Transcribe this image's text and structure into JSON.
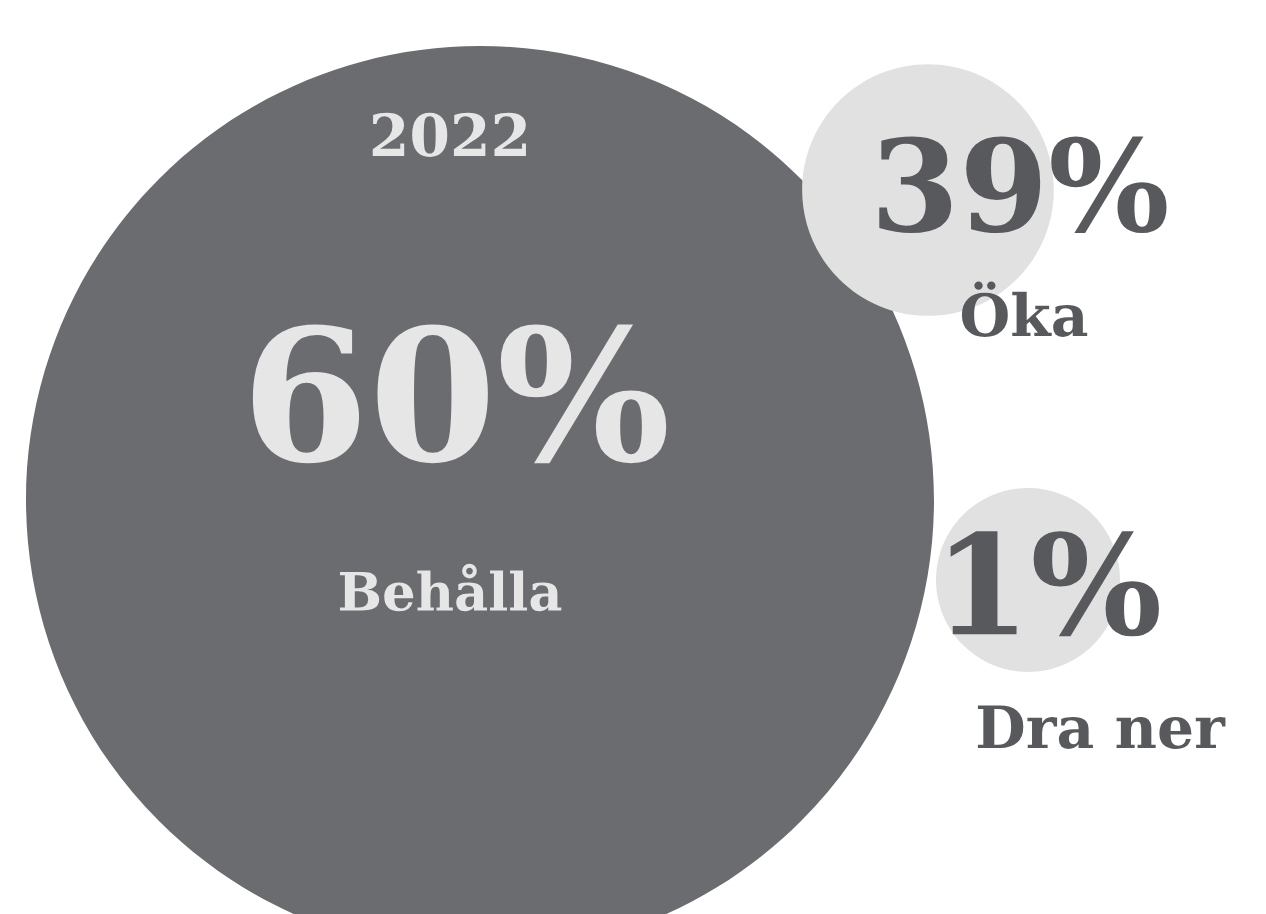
{
  "chart_data": {
    "type": "other",
    "title": "2022",
    "categories": [
      "Behålla",
      "Öka",
      "Dra ner"
    ],
    "values": [
      60,
      39,
      1
    ],
    "value_labels": [
      "60%",
      "39%",
      "1%"
    ],
    "colors": [
      "#6b6c70",
      "#e1e1e1",
      "#e1e1e1"
    ]
  }
}
